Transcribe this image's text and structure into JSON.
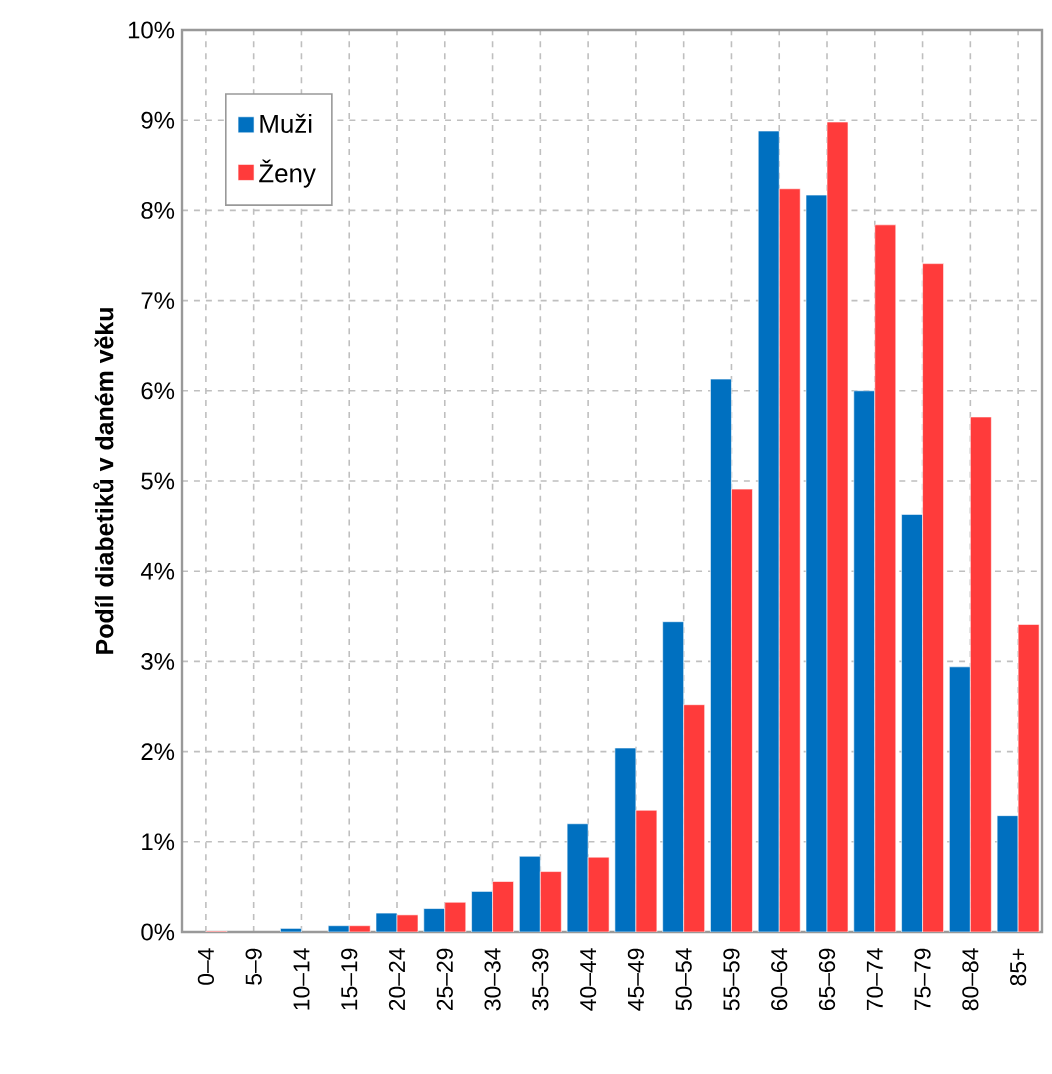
{
  "chart_data": {
    "type": "bar",
    "ylabel": "Podíl diabetiků v daném věku",
    "categories": [
      "0–4",
      "5–9",
      "10–14",
      "15–19",
      "20–24",
      "25–29",
      "30–34",
      "35–39",
      "40–44",
      "45–49",
      "50–54",
      "55–59",
      "60–64",
      "65–69",
      "70–74",
      "75–79",
      "80–84",
      "85+"
    ],
    "series": [
      {
        "name": "Muži",
        "color": "#0070c0",
        "values": [
          null,
          null,
          0.04,
          0.07,
          0.21,
          0.26,
          0.45,
          0.84,
          1.2,
          2.04,
          3.44,
          6.13,
          8.88,
          8.17,
          6.0,
          4.63,
          2.94,
          1.29
        ]
      },
      {
        "name": "Ženy",
        "color": "#ff3b3b",
        "values": [
          0.01,
          null,
          null,
          0.07,
          0.19,
          0.33,
          0.56,
          0.67,
          0.83,
          1.35,
          2.52,
          4.91,
          8.24,
          8.98,
          7.84,
          7.41,
          5.71,
          3.41
        ]
      }
    ],
    "ylim": [
      0,
      10
    ],
    "yticks": [
      {
        "value": 0,
        "label": "0%"
      },
      {
        "value": 1,
        "label": "1%"
      },
      {
        "value": 2,
        "label": "2%"
      },
      {
        "value": 3,
        "label": "3%"
      },
      {
        "value": 4,
        "label": "4%"
      },
      {
        "value": 5,
        "label": "5%"
      },
      {
        "value": 6,
        "label": "6%"
      },
      {
        "value": 7,
        "label": "7%"
      },
      {
        "value": 8,
        "label": "8%"
      },
      {
        "value": 9,
        "label": "9%"
      },
      {
        "value": 10,
        "label": "10%"
      }
    ],
    "grid": true,
    "legend": "top left"
  }
}
